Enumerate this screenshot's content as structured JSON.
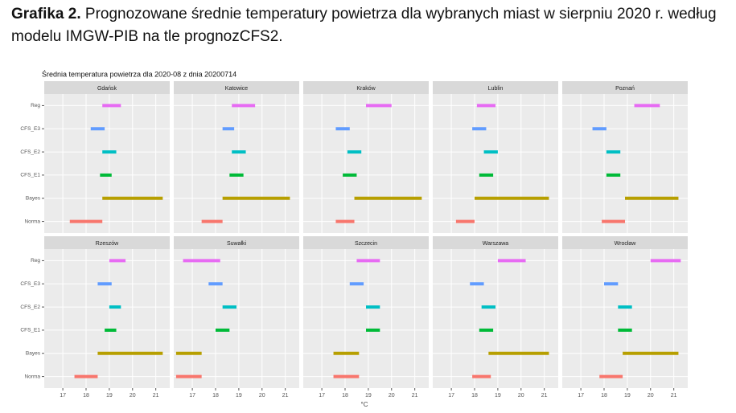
{
  "caption": {
    "label": "Grafika 2.",
    "text": "Prognozowane średnie temperatury powietrza dla wybranych miast w sierpniu 2020 r. według modelu IMGW-PIB na tle prognozCFS2."
  },
  "chart_data": {
    "type": "range",
    "title": "Średnia temperatura powietrza dla 2020-08 z dnia 20200714",
    "xlabel": "°C",
    "categories": [
      "Reg",
      "CFS_E3",
      "CFS_E2",
      "CFS_E1",
      "Bayes",
      "Norma"
    ],
    "colors": [
      "#e76bf3",
      "#619cff",
      "#00bfc4",
      "#00ba38",
      "#b79f00",
      "#f8766d"
    ],
    "xlim": [
      16.2,
      21.6
    ],
    "xticks": [
      17,
      18,
      19,
      20,
      21
    ],
    "grid": true,
    "facets": [
      {
        "title": "Gdańsk",
        "low": [
          18.7,
          18.2,
          18.7,
          18.6,
          18.7,
          17.3
        ],
        "high": [
          19.5,
          18.8,
          19.3,
          19.1,
          21.3,
          18.7
        ]
      },
      {
        "title": "Katowice",
        "low": [
          18.7,
          18.3,
          18.7,
          18.6,
          18.3,
          17.4
        ],
        "high": [
          19.7,
          18.8,
          19.3,
          19.2,
          21.2,
          18.3
        ]
      },
      {
        "title": "Kraków",
        "low": [
          18.9,
          17.6,
          18.1,
          17.9,
          18.4,
          17.6
        ],
        "high": [
          20.0,
          18.2,
          18.7,
          18.5,
          21.3,
          18.4
        ]
      },
      {
        "title": "Lublin",
        "low": [
          18.1,
          17.9,
          18.4,
          18.2,
          18.0,
          17.2
        ],
        "high": [
          18.9,
          18.5,
          19.0,
          18.8,
          21.2,
          18.0
        ]
      },
      {
        "title": "Poznań",
        "low": [
          19.3,
          17.5,
          18.1,
          18.1,
          18.9,
          17.9
        ],
        "high": [
          20.4,
          18.1,
          18.7,
          18.7,
          21.2,
          18.9
        ]
      },
      {
        "title": "Rzeszów",
        "low": [
          19.0,
          18.5,
          19.0,
          18.8,
          18.5,
          17.5
        ],
        "high": [
          19.7,
          19.1,
          19.5,
          19.3,
          21.3,
          18.5
        ]
      },
      {
        "title": "Suwałki",
        "low": [
          16.6,
          17.7,
          18.3,
          18.0,
          16.3,
          16.3
        ],
        "high": [
          18.2,
          18.3,
          18.9,
          18.6,
          17.4,
          17.4
        ]
      },
      {
        "title": "Szczecin",
        "low": [
          18.5,
          18.2,
          18.9,
          18.9,
          17.5,
          17.5
        ],
        "high": [
          19.5,
          18.8,
          19.5,
          19.5,
          18.6,
          18.6
        ]
      },
      {
        "title": "Warszawa",
        "low": [
          19.0,
          17.8,
          18.3,
          18.2,
          18.6,
          17.9
        ],
        "high": [
          20.2,
          18.4,
          18.9,
          18.8,
          21.2,
          18.7
        ]
      },
      {
        "title": "Wrocław",
        "low": [
          20.0,
          18.0,
          18.6,
          18.6,
          18.8,
          17.8
        ],
        "high": [
          21.3,
          18.6,
          19.2,
          19.2,
          21.2,
          18.8
        ]
      }
    ]
  }
}
